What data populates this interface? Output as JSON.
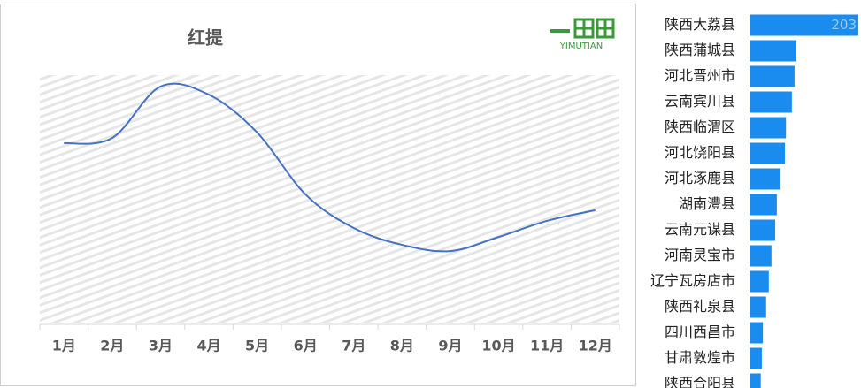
{
  "chart_data": [
    {
      "type": "line",
      "title": "红提",
      "logo": "YIMUTIAN",
      "categories": [
        "1月",
        "2月",
        "3月",
        "4月",
        "5月",
        "6月",
        "7月",
        "8月",
        "9月",
        "10月",
        "11月",
        "12月"
      ],
      "values": [
        72.5,
        74.6,
        95.4,
        92.1,
        76.8,
        51.8,
        38.2,
        31.4,
        28.9,
        34.6,
        41.1,
        45.4
      ],
      "color": "#4472c4",
      "ylim": [
        0,
        100
      ]
    },
    {
      "type": "hbar",
      "categories": [
        "陕西大荔县",
        "陕西蒲城县",
        "河北晋州市",
        "云南宾川县",
        "陕西临渭区",
        "河北饶阳县",
        "河北涿鹿县",
        "湖南澧县",
        "云南元谋县",
        "河南灵宝市",
        "辽宁瓦房店市",
        "陕西礼泉县",
        "四川西昌市",
        "甘肃敦煌市",
        "陕西合阳县"
      ],
      "values": [
        203,
        87.5,
        84,
        79,
        68,
        66,
        58,
        51,
        48,
        41,
        36,
        31,
        25,
        23,
        21
      ],
      "color": "#1a8cf0",
      "xlim": [
        0,
        203
      ]
    }
  ]
}
